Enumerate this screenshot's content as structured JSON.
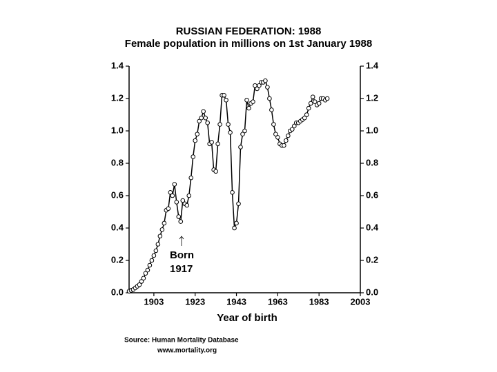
{
  "chart_data": {
    "type": "line",
    "title": "RUSSIAN FEDERATION: 1988",
    "subtitle": "Female population in millions on 1st January 1988",
    "x_label": "Year of birth",
    "annotation": [
      "Born",
      "1917"
    ],
    "source": [
      "Source: Human Mortality Database",
      "www.mortality.org"
    ],
    "color": "#000000",
    "x": [
      1891,
      1892,
      1893,
      1894,
      1895,
      1896,
      1897,
      1898,
      1899,
      1900,
      1901,
      1902,
      1903,
      1904,
      1905,
      1906,
      1907,
      1908,
      1909,
      1910,
      1911,
      1912,
      1913,
      1914,
      1915,
      1916,
      1917,
      1918,
      1919,
      1920,
      1921,
      1922,
      1923,
      1924,
      1925,
      1926,
      1927,
      1928,
      1929,
      1930,
      1931,
      1932,
      1933,
      1934,
      1935,
      1936,
      1937,
      1938,
      1939,
      1940,
      1941,
      1942,
      1943,
      1944,
      1945,
      1946,
      1947,
      1948,
      1949,
      1950,
      1951,
      1952,
      1953,
      1954,
      1955,
      1956,
      1957,
      1958,
      1959,
      1960,
      1961,
      1962,
      1963,
      1964,
      1965,
      1966,
      1967,
      1968,
      1969,
      1970,
      1971,
      1972,
      1973,
      1974,
      1975,
      1976,
      1977,
      1978,
      1979,
      1980,
      1981,
      1982,
      1983,
      1984,
      1985,
      1986,
      1987
    ],
    "values": [
      0.01,
      0.015,
      0.02,
      0.03,
      0.04,
      0.05,
      0.07,
      0.09,
      0.12,
      0.14,
      0.17,
      0.2,
      0.23,
      0.26,
      0.3,
      0.35,
      0.39,
      0.43,
      0.51,
      0.52,
      0.62,
      0.6,
      0.67,
      0.56,
      0.47,
      0.44,
      0.57,
      0.55,
      0.54,
      0.6,
      0.71,
      0.84,
      0.94,
      0.98,
      1.06,
      1.08,
      1.12,
      1.08,
      1.05,
      0.92,
      0.93,
      0.76,
      0.75,
      0.92,
      1.04,
      1.22,
      1.22,
      1.19,
      1.04,
      0.99,
      0.62,
      0.4,
      0.43,
      0.55,
      0.9,
      0.98,
      1.0,
      1.19,
      1.14,
      1.17,
      1.18,
      1.28,
      1.26,
      1.28,
      1.3,
      1.3,
      1.31,
      1.27,
      1.2,
      1.13,
      1.04,
      0.98,
      0.96,
      0.92,
      0.91,
      0.91,
      0.94,
      0.97,
      1.0,
      1.01,
      1.03,
      1.05,
      1.05,
      1.06,
      1.07,
      1.08,
      1.1,
      1.14,
      1.17,
      1.21,
      1.18,
      1.16,
      1.17,
      1.2,
      1.2,
      1.19,
      1.2
    ],
    "xlim": [
      1891,
      2003
    ],
    "xticks": [
      1903,
      1923,
      1943,
      1963,
      1983,
      2003
    ],
    "ylim": [
      0,
      1.4
    ],
    "yticks": [
      {
        "value": 0,
        "label": "0.0"
      },
      0.2,
      0.4,
      0.6,
      0.8,
      {
        "value": 1,
        "label": "1.0"
      },
      1.2,
      1.4
    ]
  }
}
